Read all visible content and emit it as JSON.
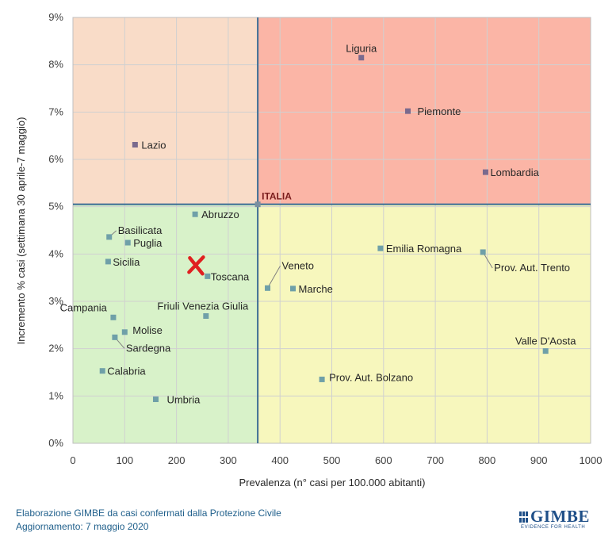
{
  "chart_data": {
    "type": "scatter",
    "title": "",
    "xlabel": "Prevalenza  (n° casi per 100.000 abitanti)",
    "ylabel": "Incremento %  casi (settimana 30 aprile-7 maggio)",
    "xlim": [
      0,
      1000
    ],
    "ylim": [
      0,
      9
    ],
    "x_ticks": [
      0,
      100,
      200,
      300,
      400,
      500,
      600,
      700,
      800,
      900,
      1000
    ],
    "y_ticks": [
      "0%",
      "1%",
      "2%",
      "3%",
      "4%",
      "5%",
      "6%",
      "7%",
      "8%",
      "9%"
    ],
    "reference": {
      "label": "ITALIA",
      "x": 357,
      "y": 5.05
    },
    "quadrant_colors": {
      "top_left": "#f9dcc8",
      "top_right": "#fbb5a6",
      "bottom_left": "#d8f2c9",
      "bottom_right": "#f7f7bd"
    },
    "series": [
      {
        "name": "Liguria",
        "x": 557,
        "y": 8.15
      },
      {
        "name": "Piemonte",
        "x": 647,
        "y": 7.02
      },
      {
        "name": "Lombardia",
        "x": 797,
        "y": 5.73
      },
      {
        "name": "Lazio",
        "x": 120,
        "y": 6.31
      },
      {
        "name": "Abruzzo",
        "x": 236,
        "y": 4.84
      },
      {
        "name": "Basilicata",
        "x": 70,
        "y": 4.36
      },
      {
        "name": "Puglia",
        "x": 106,
        "y": 4.24
      },
      {
        "name": "Sicilia",
        "x": 68,
        "y": 3.84
      },
      {
        "name": "Toscana",
        "x": 260,
        "y": 3.53
      },
      {
        "name": "Emilia Romagna",
        "x": 594,
        "y": 4.12
      },
      {
        "name": "Prov. Aut. Trento",
        "x": 792,
        "y": 4.04
      },
      {
        "name": "Veneto",
        "x": 376,
        "y": 3.28
      },
      {
        "name": "Marche",
        "x": 425,
        "y": 3.27
      },
      {
        "name": "Campania",
        "x": 78,
        "y": 2.66
      },
      {
        "name": "Friuli Venezia Giulia",
        "x": 257,
        "y": 2.69
      },
      {
        "name": "Molise",
        "x": 100,
        "y": 2.35
      },
      {
        "name": "Sardegna",
        "x": 81,
        "y": 2.24
      },
      {
        "name": "Calabria",
        "x": 57,
        "y": 1.53
      },
      {
        "name": "Umbria",
        "x": 160,
        "y": 0.93
      },
      {
        "name": "Prov. Aut. Bolzano",
        "x": 481,
        "y": 1.35
      },
      {
        "name": "Valle D'Aosta",
        "x": 913,
        "y": 1.95
      }
    ],
    "annotation_marker": {
      "symbol": "✕",
      "x": 238,
      "y": 3.75,
      "color": "#e02020"
    }
  },
  "footer": {
    "line1": "Elaborazione GIMBE da casi confermati dalla Protezione Civile",
    "line2": "Aggiornamento: 7 maggio 2020"
  },
  "logo": {
    "name": "GIMBE",
    "tagline": "EVIDENCE FOR HEALTH"
  }
}
